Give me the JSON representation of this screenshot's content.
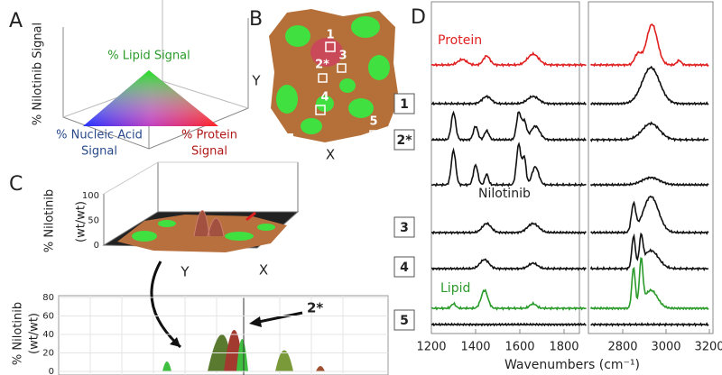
{
  "panels": {
    "A": {
      "label": "A",
      "axis": "% Nilotinib Signal",
      "lipid": "% Lipid Signal",
      "nucleic": [
        "% Nucleic Acid",
        "Signal"
      ],
      "protein": [
        "% Protein",
        "Signal"
      ]
    },
    "B": {
      "label": "B",
      "y_axis": "Y",
      "x_axis": "X",
      "regions": [
        "1",
        "2*",
        "3",
        "4",
        "5"
      ]
    },
    "C": {
      "label": "C",
      "z_axis": [
        "% Nilotinib",
        "(wt/wt)"
      ],
      "z_ticks": [
        0,
        50,
        100
      ],
      "x_axis": "X",
      "y_axis": "Y",
      "marker": "*",
      "lower_axis": [
        "% Nilotinib",
        "(wt/wt)"
      ],
      "lower_ticks": [
        0,
        20,
        40,
        60,
        80
      ],
      "callout": "2*"
    },
    "D": {
      "label": "D",
      "spectra": [
        "Protein",
        "1",
        "2*",
        "Nilotinib",
        "3",
        "4",
        "Lipid",
        "5"
      ],
      "x_ticks_left": [
        1200,
        1400,
        1600,
        1800
      ],
      "x_ticks_right": [
        2800,
        3000,
        3200
      ],
      "x_axis": "Wavenumbers (cm⁻¹)"
    }
  }
}
